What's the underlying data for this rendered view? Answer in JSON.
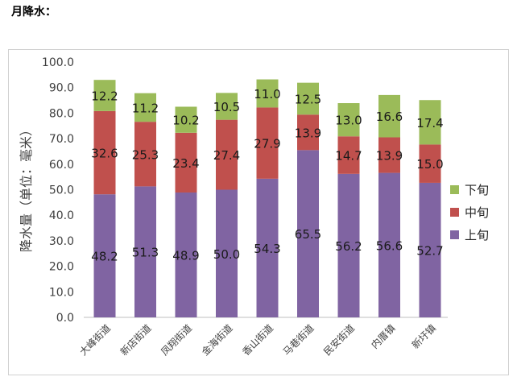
{
  "heading": "月降水：",
  "chart_data": {
    "type": "bar",
    "stacked": true,
    "categories": [
      "大峰街道",
      "新店街道",
      "凤翔街道",
      "金海街道",
      "香山街道",
      "马巷街道",
      "民安街道",
      "内厝镇",
      "新圩镇"
    ],
    "series": [
      {
        "name": "上旬",
        "color": "#8064a2",
        "values": [
          48.2,
          51.3,
          48.9,
          50.0,
          54.3,
          65.5,
          56.2,
          56.6,
          52.7
        ]
      },
      {
        "name": "中旬",
        "color": "#c0504d",
        "values": [
          32.6,
          25.3,
          23.4,
          27.4,
          27.9,
          13.9,
          14.7,
          13.9,
          15.0
        ]
      },
      {
        "name": "下旬",
        "color": "#9bbb59",
        "values": [
          12.2,
          11.2,
          10.2,
          10.5,
          11.0,
          12.5,
          13.0,
          16.6,
          17.4
        ]
      }
    ],
    "ylabel": "降水量（单位：毫米）",
    "ylim": [
      0,
      100
    ],
    "yticks": [
      "0.0",
      "10.0",
      "20.0",
      "30.0",
      "40.0",
      "50.0",
      "60.0",
      "70.0",
      "80.0",
      "90.0",
      "100.0"
    ],
    "legend": {
      "position": "right",
      "order": [
        "下旬",
        "中旬",
        "上旬"
      ]
    },
    "grid": false
  }
}
